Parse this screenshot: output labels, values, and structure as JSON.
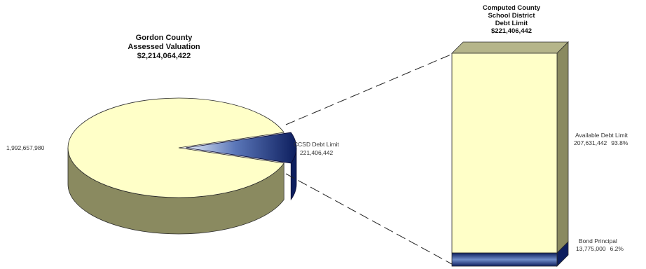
{
  "chart_data": [
    {
      "type": "pie",
      "title_lines": [
        "Gordon County",
        "Assessed Valuation",
        "$2,214,064,422"
      ],
      "slices": [
        {
          "label": "",
          "value": 1992657980,
          "value_label": "1,992,657,980",
          "color": "#ffffc8"
        },
        {
          "label": "CCSD Debt Limit",
          "value": 221406442,
          "value_label": "221,406,442",
          "color": "#1a2f7a"
        }
      ],
      "explode": "CCSD Debt Limit"
    },
    {
      "type": "bar",
      "stacked": true,
      "title_lines": [
        "Computed County",
        "School District",
        "Debt Limit",
        "$221,406,442"
      ],
      "segments": [
        {
          "label": "Bond Principal",
          "value": 13775000,
          "value_label": "13,775,000",
          "percent_label": "6.2%",
          "color": "#1a2f7a"
        },
        {
          "label": "Available Debt Limit",
          "value": 207631442,
          "value_label": "207,631,442",
          "percent_label": "93.8%",
          "color": "#ffffc8"
        }
      ]
    }
  ]
}
